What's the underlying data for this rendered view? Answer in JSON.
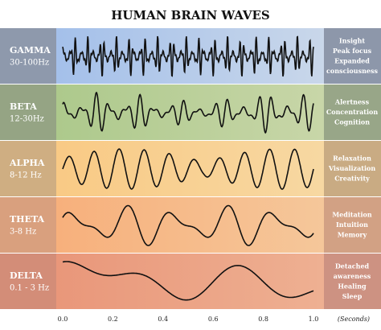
{
  "title": "HUMAN BRAIN WAVES",
  "bands": [
    {
      "name": "GAMMA",
      "range": "30-100Hz",
      "description": [
        "Insight",
        "Peak focus",
        "Expanded",
        "consciousness"
      ]
    },
    {
      "name": "BETA",
      "range": "12-30Hz",
      "description": [
        "Alertness",
        "Concentration",
        "Cognition"
      ]
    },
    {
      "name": "ALPHA",
      "range": "8-12 Hz",
      "description": [
        "Relaxation",
        "Visualization",
        "Creativity"
      ]
    },
    {
      "name": "THETA",
      "range": "3-8 Hz",
      "description": [
        "Meditation",
        "Intuition",
        "Memory"
      ]
    },
    {
      "name": "DELTA",
      "range": "0.1 - 3 Hz",
      "description": [
        "Detached",
        "awareness",
        "Healing",
        "Sleep"
      ]
    }
  ],
  "x_axis": {
    "ticks": [
      "0.0",
      "0.2",
      "0.4",
      "0.6",
      "0.8",
      "1.0"
    ],
    "unit": "(Seconds)"
  }
}
